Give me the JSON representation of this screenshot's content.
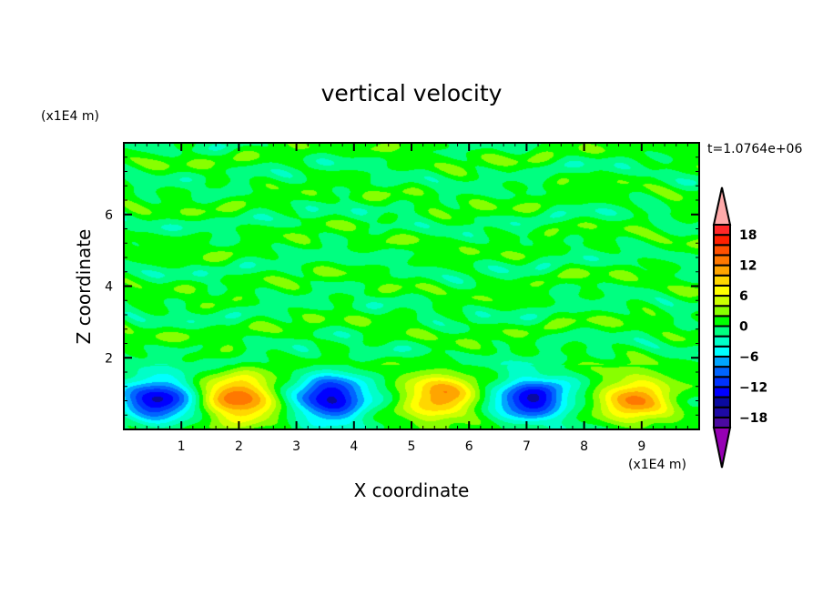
{
  "chart_data": {
    "type": "heatmap",
    "subtype": "filled-contour",
    "title": "vertical velocity",
    "xlabel": "X coordinate",
    "ylabel": "Z coordinate",
    "x_unit": "(x1E4 m)",
    "y_unit": "(x1E4 m)",
    "time_label": "t=1.0764e+06",
    "xlim": [
      0,
      10
    ],
    "ylim": [
      0,
      8
    ],
    "xticks": [
      1,
      2,
      3,
      4,
      5,
      6,
      7,
      8,
      9
    ],
    "yticks": [
      2,
      4,
      6
    ],
    "colorbar": {
      "levels": [
        -20,
        -18,
        -16,
        -14,
        -12,
        -10,
        -8,
        -6,
        -4,
        -2,
        0,
        2,
        4,
        6,
        8,
        10,
        12,
        14,
        16,
        18,
        20
      ],
      "tick_labels": [
        "-18",
        "-12",
        "-6",
        "0",
        "6",
        "12",
        "18"
      ],
      "colors": [
        "#4b0aa0",
        "#1e0aa5",
        "#0a0aa0",
        "#0000ff",
        "#0033ff",
        "#0064ff",
        "#00a5ff",
        "#00ffff",
        "#00ffc8",
        "#00ff80",
        "#00ff00",
        "#88ff00",
        "#ccff00",
        "#ffff00",
        "#ffd700",
        "#ffa500",
        "#ff7800",
        "#ff5000",
        "#ff2000",
        "#ff2828"
      ],
      "over_color": "#ffaaaa",
      "under_color": "#9600b4"
    },
    "features": [
      {
        "kind": "downdraft",
        "x": 0.6,
        "z": 0.85,
        "value": -14
      },
      {
        "kind": "updraft",
        "x": 2.0,
        "z": 0.85,
        "value": 14
      },
      {
        "kind": "downdraft",
        "x": 3.6,
        "z": 0.85,
        "value": -15
      },
      {
        "kind": "updraft",
        "x": 5.5,
        "z": 0.9,
        "value": 12
      },
      {
        "kind": "downdraft",
        "x": 7.1,
        "z": 0.85,
        "value": -14
      },
      {
        "kind": "updraft",
        "x": 8.9,
        "z": 0.85,
        "value": 12
      }
    ],
    "background_range": [
      -2,
      2
    ]
  }
}
